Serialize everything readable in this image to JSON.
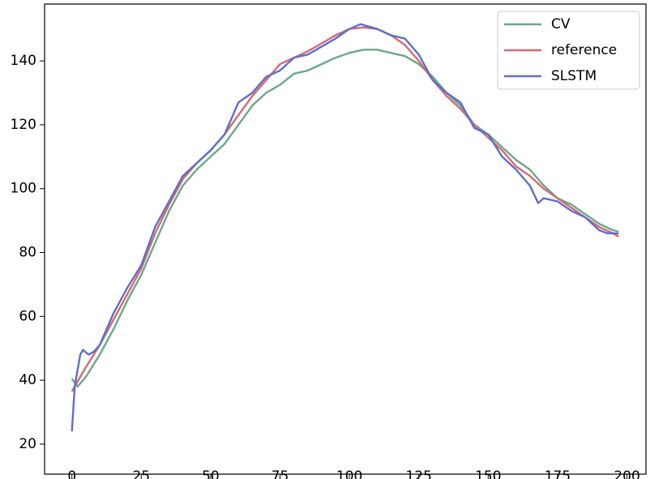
{
  "chart_data": {
    "type": "line",
    "xlim": [
      -9.85,
      206.85
    ],
    "ylim": [
      10.6,
      157.8
    ],
    "xticks": [
      0,
      25,
      50,
      75,
      100,
      125,
      150,
      175,
      200
    ],
    "yticks": [
      20,
      40,
      60,
      80,
      100,
      120,
      140
    ],
    "grid": false,
    "legend": "upper right",
    "series": [
      {
        "name": "CV",
        "color": "#6aa889",
        "x": [
          0,
          2,
          5,
          10,
          15,
          20,
          25,
          30,
          35,
          40,
          45,
          50,
          55,
          60,
          65,
          70,
          75,
          80,
          85,
          90,
          95,
          100,
          105,
          110,
          115,
          120,
          125,
          130,
          135,
          140,
          145,
          150,
          155,
          160,
          165,
          170,
          175,
          180,
          185,
          190,
          195,
          197
        ],
        "values": [
          40.5,
          38,
          41,
          48,
          56,
          65,
          73,
          83,
          93,
          101,
          106,
          110,
          114,
          120,
          126,
          130,
          132.5,
          136,
          137,
          139,
          141,
          142.5,
          143.5,
          143.5,
          142.5,
          141.5,
          139,
          135,
          130,
          126,
          120,
          117,
          113,
          109,
          106,
          101,
          97,
          95,
          92,
          89,
          87,
          86.5
        ]
      },
      {
        "name": "reference",
        "color": "#d9686e",
        "x": [
          0,
          5,
          10,
          15,
          20,
          25,
          30,
          35,
          40,
          45,
          50,
          55,
          60,
          65,
          70,
          75,
          80,
          85,
          90,
          95,
          100,
          105,
          110,
          115,
          120,
          125,
          130,
          135,
          140,
          145,
          150,
          155,
          160,
          165,
          170,
          175,
          180,
          185,
          190,
          195,
          197
        ],
        "values": [
          36.5,
          44,
          51,
          59,
          67,
          75,
          86,
          95,
          103,
          108,
          112,
          117,
          123,
          129,
          134,
          139,
          141,
          143,
          145.5,
          148,
          150,
          150.5,
          150,
          148,
          145,
          140,
          134,
          129,
          125,
          120,
          116,
          112,
          107,
          104,
          100,
          97,
          94,
          91,
          88,
          86,
          85
        ]
      },
      {
        "name": "SLSTM",
        "color": "#5b6fce",
        "x": [
          0,
          1,
          3,
          4,
          6,
          8,
          10,
          15,
          20,
          25,
          30,
          35,
          40,
          45,
          50,
          55,
          60,
          65,
          70,
          75,
          80,
          85,
          90,
          95,
          100,
          104,
          110,
          115,
          120,
          125,
          130,
          135,
          140,
          145,
          150,
          155,
          160,
          165,
          168,
          170,
          175,
          180,
          185,
          190,
          193,
          197
        ],
        "values": [
          24,
          38,
          48,
          49.5,
          48,
          49,
          51,
          61,
          69,
          76,
          88,
          96,
          104,
          108,
          112,
          117,
          127,
          130,
          135,
          137,
          141,
          142,
          144.5,
          147,
          150,
          151.5,
          150,
          148,
          147,
          142,
          134,
          130,
          127,
          119,
          117,
          110,
          106,
          101,
          95.5,
          97,
          96,
          93,
          91,
          87,
          86,
          86
        ]
      }
    ]
  }
}
